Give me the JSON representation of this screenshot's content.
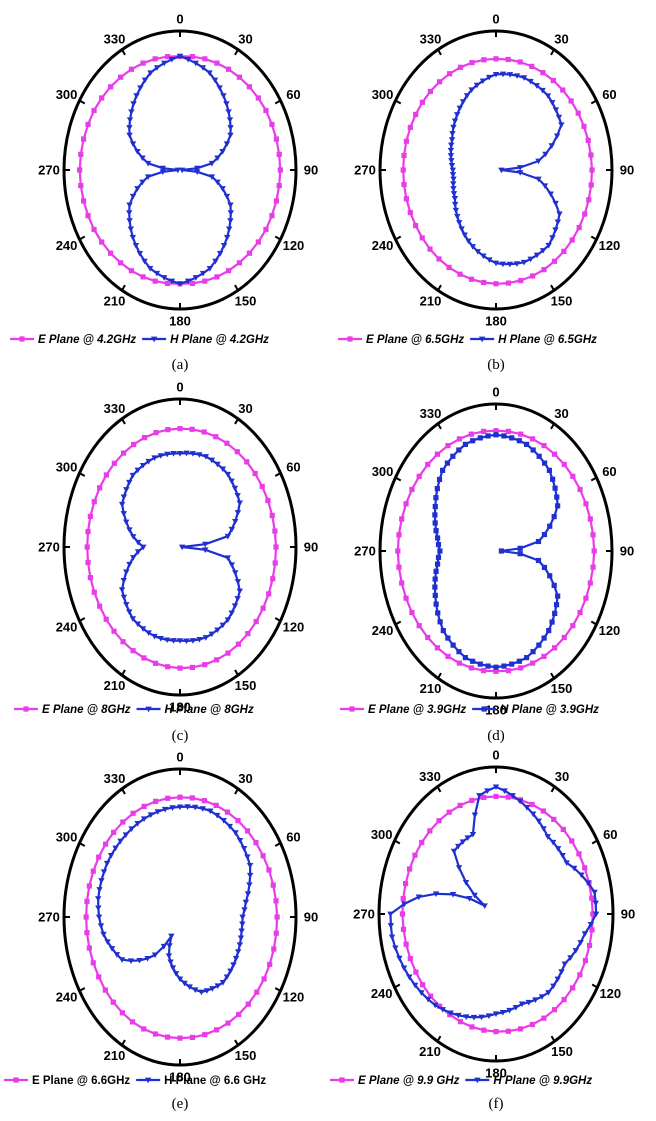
{
  "figure": {
    "angle_ticks": [
      "0",
      "30",
      "60",
      "90",
      "120",
      "150",
      "180",
      "210",
      "240",
      "270",
      "300",
      "330"
    ],
    "colors": {
      "e_plane": "#e83ce8",
      "h_plane": "#1f2fd0",
      "frame": "#000000"
    },
    "markers": {
      "e_plane": "square",
      "h_plane": "down-triangle"
    }
  },
  "chart_data": [
    {
      "type": "polar-line",
      "caption": "(a)",
      "theta_ticks": [
        "0",
        "30",
        "60",
        "90",
        "120",
        "150",
        "180",
        "210",
        "240",
        "270",
        "300",
        "330"
      ],
      "series": [
        {
          "name": "E Plane @ 4.2GHz",
          "color": "#e83ce8",
          "marker": "square",
          "theta_deg": [
            0,
            30,
            60,
            90,
            120,
            150,
            180,
            210,
            240,
            270,
            300,
            330
          ],
          "r": [
            0.88,
            0.9,
            0.92,
            0.93,
            0.92,
            0.9,
            0.88,
            0.9,
            0.92,
            0.93,
            0.92,
            0.9
          ]
        },
        {
          "name": "H Plane @ 4.2GHz",
          "color": "#1f2fd0",
          "marker": "down-triangle",
          "theta_deg": [
            0,
            20,
            40,
            60,
            80,
            90,
            100,
            120,
            140,
            160,
            180,
            200,
            220,
            240,
            260,
            270,
            280,
            300,
            320,
            340
          ],
          "r": [
            0.88,
            0.8,
            0.67,
            0.54,
            0.3,
            0.02,
            0.3,
            0.54,
            0.68,
            0.81,
            0.88,
            0.81,
            0.68,
            0.54,
            0.3,
            0.02,
            0.3,
            0.54,
            0.67,
            0.8
          ]
        }
      ]
    },
    {
      "type": "polar-line",
      "caption": "(b)",
      "theta_ticks": [
        "0",
        "30",
        "60",
        "90",
        "120",
        "150",
        "180",
        "210",
        "240",
        "270",
        "300",
        "330"
      ],
      "series": [
        {
          "name": "E Plane @ 6.5GHz",
          "color": "#e83ce8",
          "marker": "square",
          "theta_deg": [
            0,
            30,
            60,
            90,
            120,
            150,
            180,
            210,
            240,
            270,
            300,
            330
          ],
          "r": [
            0.86,
            0.87,
            0.88,
            0.89,
            0.89,
            0.89,
            0.88,
            0.87,
            0.86,
            0.86,
            0.86,
            0.86
          ]
        },
        {
          "name": "H Plane @ 6.5GHz",
          "color": "#1f2fd0",
          "marker": "down-triangle",
          "theta_deg": [
            0,
            20,
            40,
            60,
            80,
            90,
            100,
            120,
            140,
            160,
            180,
            200,
            220,
            240,
            260,
            270,
            280,
            300,
            320,
            340
          ],
          "r": [
            0.74,
            0.76,
            0.75,
            0.7,
            0.4,
            0.05,
            0.4,
            0.68,
            0.76,
            0.76,
            0.72,
            0.63,
            0.53,
            0.44,
            0.4,
            0.4,
            0.42,
            0.47,
            0.56,
            0.66
          ]
        }
      ]
    },
    {
      "type": "polar-line",
      "caption": "(c)",
      "theta_ticks": [
        "0",
        "30",
        "60",
        "90",
        "120",
        "150",
        "180",
        "210",
        "240",
        "270",
        "300",
        "330"
      ],
      "series": [
        {
          "name": "E Plane @ 8GHz",
          "color": "#e83ce8",
          "marker": "square",
          "theta_deg": [
            0,
            30,
            60,
            90,
            120,
            150,
            180,
            210,
            240,
            270,
            300,
            330
          ],
          "r": [
            0.86,
            0.87,
            0.88,
            0.89,
            0.89,
            0.89,
            0.88,
            0.87,
            0.86,
            0.86,
            0.86,
            0.86
          ]
        },
        {
          "name": "H Plane @ 8GHz",
          "color": "#1f2fd0",
          "marker": "down-triangle",
          "theta_deg": [
            0,
            20,
            40,
            60,
            80,
            90,
            100,
            120,
            140,
            160,
            180,
            200,
            220,
            240,
            260,
            270,
            280,
            300,
            320,
            340
          ],
          "r": [
            0.68,
            0.7,
            0.69,
            0.64,
            0.45,
            0.02,
            0.45,
            0.64,
            0.69,
            0.7,
            0.68,
            0.69,
            0.68,
            0.62,
            0.44,
            0.34,
            0.44,
            0.62,
            0.68,
            0.69
          ]
        }
      ]
    },
    {
      "type": "polar-line",
      "caption": "(d)",
      "theta_ticks": [
        "0",
        "30",
        "60",
        "90",
        "120",
        "150",
        "180",
        "210",
        "240",
        "270",
        "300",
        "330"
      ],
      "series": [
        {
          "name": "E Plane @ 3.9GHz",
          "color": "#e83ce8",
          "marker": "square",
          "theta_deg": [
            0,
            30,
            60,
            90,
            120,
            150,
            180,
            210,
            240,
            270,
            300,
            330
          ],
          "r": [
            0.88,
            0.89,
            0.9,
            0.91,
            0.9,
            0.89,
            0.88,
            0.89,
            0.9,
            0.91,
            0.9,
            0.89
          ]
        },
        {
          "name": "H Plane @ 3.9GHz",
          "color": "#1f2fd0",
          "marker": "square",
          "theta_deg": [
            0,
            20,
            40,
            60,
            80,
            90,
            100,
            120,
            140,
            160,
            180,
            200,
            220,
            240,
            260,
            270,
            280,
            300,
            320,
            340
          ],
          "r": [
            0.85,
            0.83,
            0.77,
            0.66,
            0.4,
            0.05,
            0.4,
            0.66,
            0.76,
            0.83,
            0.85,
            0.83,
            0.76,
            0.65,
            0.55,
            0.52,
            0.55,
            0.65,
            0.77,
            0.83
          ]
        }
      ]
    },
    {
      "type": "polar-line",
      "caption": "(e)",
      "theta_ticks": [
        "0",
        "30",
        "60",
        "90",
        "120",
        "150",
        "180",
        "210",
        "240",
        "270",
        "300",
        "330"
      ],
      "series": [
        {
          "name": "E Plane @ 6.6GHz",
          "color": "#e83ce8",
          "marker": "square",
          "theta_deg": [
            0,
            30,
            60,
            90,
            120,
            150,
            180,
            210,
            240,
            270,
            300,
            330
          ],
          "r": [
            0.87,
            0.88,
            0.89,
            0.9,
            0.9,
            0.89,
            0.88,
            0.88,
            0.87,
            0.87,
            0.87,
            0.87
          ]
        },
        {
          "name": "H Plane @ 6.6 GHz",
          "color": "#1f2fd0",
          "marker": "down-triangle",
          "theta_deg": [
            0,
            20,
            40,
            60,
            80,
            90,
            100,
            120,
            140,
            160,
            180,
            200,
            210,
            220,
            240,
            260,
            270,
            280,
            300,
            320,
            340
          ],
          "r": [
            0.8,
            0.82,
            0.8,
            0.75,
            0.62,
            0.58,
            0.58,
            0.6,
            0.62,
            0.58,
            0.45,
            0.3,
            0.16,
            0.36,
            0.62,
            0.72,
            0.75,
            0.77,
            0.78,
            0.78,
            0.79
          ]
        }
      ]
    },
    {
      "type": "polar-line",
      "caption": "(f)",
      "theta_ticks": [
        "0",
        "30",
        "60",
        "90",
        "120",
        "150",
        "180",
        "210",
        "240",
        "270",
        "300",
        "330"
      ],
      "series": [
        {
          "name": "E Plane @ 9.9 GHz",
          "color": "#e83ce8",
          "marker": "square",
          "theta_deg": [
            0,
            30,
            60,
            90,
            120,
            150,
            180,
            210,
            240,
            270,
            300,
            330
          ],
          "r": [
            0.86,
            0.87,
            0.88,
            0.89,
            0.89,
            0.88,
            0.86,
            0.85,
            0.85,
            0.86,
            0.86,
            0.86
          ]
        },
        {
          "name": "H Plane @ 9.9GHz",
          "color": "#1f2fd0",
          "marker": "down-triangle",
          "theta_deg": [
            0,
            20,
            40,
            60,
            80,
            90,
            100,
            120,
            140,
            160,
            180,
            200,
            220,
            240,
            260,
            270,
            280,
            300,
            320,
            340,
            350
          ],
          "r": [
            0.93,
            0.83,
            0.74,
            0.75,
            0.92,
            0.92,
            0.83,
            0.73,
            0.75,
            0.7,
            0.73,
            0.8,
            0.87,
            0.92,
            0.97,
            0.97,
            0.72,
            0.12,
            0.6,
            0.62,
            0.88
          ]
        }
      ]
    }
  ]
}
